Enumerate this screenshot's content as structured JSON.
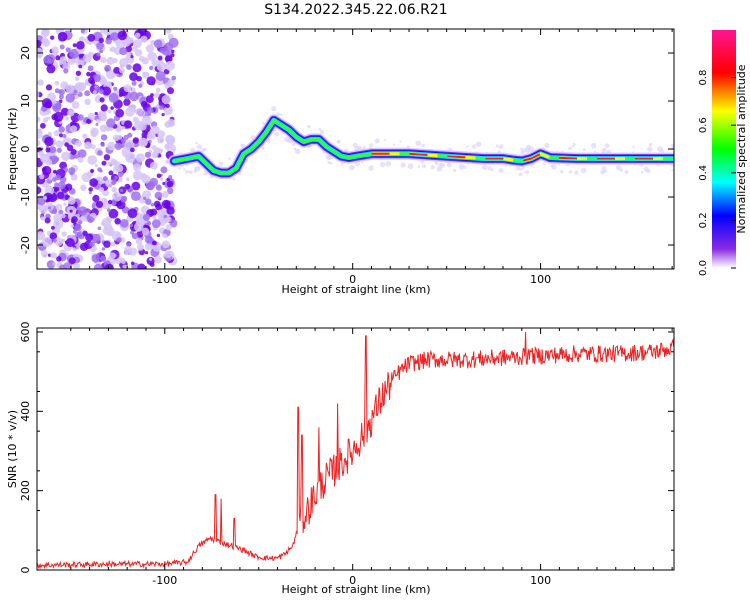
{
  "figure_title": "S134.2022.345.22.06.R21",
  "chart_data": [
    {
      "type": "heatmap",
      "xlabel": "Height of straight line (km)",
      "ylabel": "Frequency (Hz)",
      "xlim": [
        -168,
        171
      ],
      "ylim": [
        -25,
        25
      ],
      "xticks": [
        -100,
        0,
        100
      ],
      "yticks": [
        -20,
        -10,
        0,
        10,
        20
      ],
      "grid": false,
      "colorbar": {
        "label": "Normalized spectral amplitude",
        "range": [
          0,
          1
        ],
        "ticks": [
          "0.0",
          "0.2",
          "0.4",
          "0.6",
          "0.8"
        ],
        "colormap": [
          "#ffffff",
          "#8a2be2",
          "#0000ff",
          "#00ffff",
          "#00ff00",
          "#ffff00",
          "#ff0000",
          "#ff1493"
        ]
      },
      "ridge": {
        "x": [
          -95,
          -88,
          -82,
          -78,
          -74,
          -70,
          -66,
          -62,
          -58,
          -54,
          -50,
          -46,
          -42,
          -38,
          -34,
          -30,
          -26,
          -22,
          -18,
          -14,
          -10,
          -6,
          -2,
          2,
          10,
          30,
          50,
          70,
          80,
          85,
          90,
          95,
          100,
          105,
          120,
          140,
          171
        ],
        "y": [
          -2.5,
          -2,
          -1.5,
          -3,
          -4.5,
          -5,
          -5,
          -4,
          -1,
          0,
          1.5,
          3.5,
          6,
          5,
          4,
          2.5,
          1.5,
          2,
          2,
          0.5,
          -0.5,
          -1.5,
          -1.8,
          -1.5,
          -1,
          -1,
          -1.5,
          -2,
          -2,
          -2.3,
          -2.5,
          -2,
          -1,
          -1.8,
          -2,
          -2,
          -2
        ]
      },
      "noise_region": {
        "x_from": -168,
        "x_to": -95
      }
    },
    {
      "type": "line",
      "xlabel": "Height of straight line (km)",
      "ylabel": "SNR (10 * v/v)",
      "xlim": [
        -168,
        171
      ],
      "ylim": [
        0,
        610
      ],
      "xticks": [
        -100,
        0,
        100
      ],
      "yticks": [
        0,
        200,
        400,
        600
      ],
      "color": "#ee2222",
      "grid": false,
      "trend": {
        "x": [
          -168,
          -130,
          -100,
          -88,
          -82,
          -76,
          -70,
          -64,
          -58,
          -52,
          -46,
          -40,
          -36,
          -32,
          -28,
          -24,
          -20,
          -16,
          -12,
          -8,
          -4,
          0,
          4,
          8,
          12,
          16,
          20,
          25,
          30,
          40,
          60,
          80,
          100,
          120,
          140,
          160,
          171
        ],
        "y": [
          12,
          15,
          15,
          20,
          60,
          80,
          70,
          60,
          50,
          35,
          30,
          30,
          40,
          60,
          120,
          150,
          190,
          220,
          240,
          260,
          280,
          300,
          330,
          360,
          400,
          440,
          470,
          500,
          520,
          530,
          530,
          535,
          540,
          545,
          545,
          550,
          560
        ]
      },
      "spikes": [
        {
          "x": -73,
          "y": 190
        },
        {
          "x": -70,
          "y": 180
        },
        {
          "x": -63,
          "y": 130
        },
        {
          "x": -29,
          "y": 410
        },
        {
          "x": -27,
          "y": 340
        },
        {
          "x": -18,
          "y": 360
        },
        {
          "x": -8,
          "y": 420
        },
        {
          "x": 7,
          "y": 590
        },
        {
          "x": 92,
          "y": 600
        },
        {
          "x": 95,
          "y": 550
        }
      ],
      "noise_amplitude": 20
    }
  ]
}
